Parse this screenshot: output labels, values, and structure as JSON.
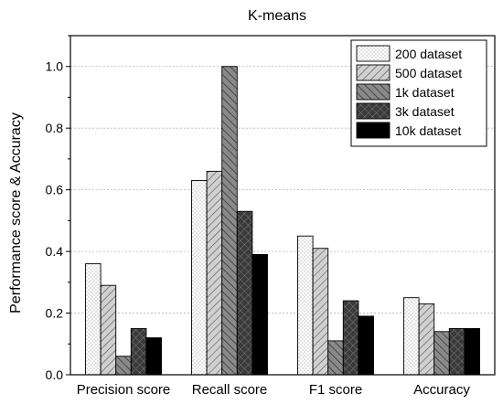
{
  "chart_data": {
    "type": "bar",
    "title": "K-means",
    "xlabel": "",
    "ylabel": "Performance score & Accuracy",
    "categories": [
      "Precision score",
      "Recall score",
      "F1 score",
      "Accuracy"
    ],
    "series": [
      {
        "name": "200 dataset",
        "values": [
          0.36,
          0.63,
          0.45,
          0.25
        ],
        "pattern": "dots"
      },
      {
        "name": "500 dataset",
        "values": [
          0.29,
          0.66,
          0.41,
          0.23
        ],
        "pattern": "diag-light"
      },
      {
        "name": "1k dataset",
        "values": [
          0.06,
          1.0,
          0.11,
          0.14
        ],
        "pattern": "diag-dark"
      },
      {
        "name": "3k dataset",
        "values": [
          0.15,
          0.53,
          0.24,
          0.15
        ],
        "pattern": "crosshatch"
      },
      {
        "name": "10k dataset",
        "values": [
          0.12,
          0.39,
          0.19,
          0.15
        ],
        "pattern": "solid"
      }
    ],
    "ylim": [
      0,
      1.1
    ],
    "yticks": [
      "0.0",
      "0.2",
      "0.4",
      "0.6",
      "0.8",
      "1.0"
    ],
    "grid": true,
    "legend_position": "top-right"
  }
}
